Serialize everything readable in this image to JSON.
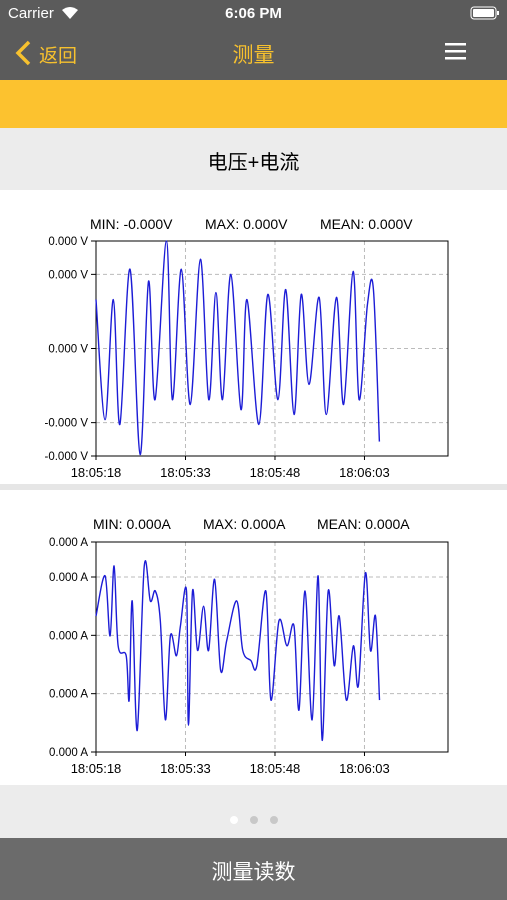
{
  "status_bar": {
    "carrier": "Carrier",
    "time": "6:06 PM"
  },
  "nav": {
    "back": "返回",
    "title": "测量"
  },
  "section_title": "电压+电流",
  "bottom_button": "测量读数",
  "chart_data": [
    {
      "type": "line",
      "stats": [
        "MIN: -0.000V",
        "MAX: 0.000V",
        "MEAN: 0.000V"
      ],
      "color": "#1c1cd6",
      "grid": true,
      "xlim": [
        65118,
        65177
      ],
      "xticks": [
        {
          "value": 65118,
          "label": "18:05:18"
        },
        {
          "value": 65133,
          "label": "18:05:33"
        },
        {
          "value": 65148,
          "label": "18:05:48"
        },
        {
          "value": 65163,
          "label": "18:06:03"
        }
      ],
      "ylim": [
        -0.00029,
        0.00029
      ],
      "yticks": [
        {
          "value": 0.00029,
          "label": "0.000 V"
        },
        {
          "value": 0.0002,
          "label": "0.000 V"
        },
        {
          "value": 0,
          "label": "0.000 V"
        },
        {
          "value": -0.0002,
          "label": "-0.000 V"
        },
        {
          "value": -0.00029,
          "label": "-0.000 V"
        }
      ],
      "x": [
        65118,
        65119.52,
        65120.9,
        65122,
        65123.7,
        65125.4,
        65126.8,
        65127.9,
        65129.8,
        65130.8,
        65132.3,
        65133.8,
        65135.5,
        65136.9,
        65138.1,
        65139.2,
        65140.6,
        65142.3,
        65143.3,
        65145.3,
        65146.8,
        65148.5,
        65149.8,
        65151.2,
        65152.4,
        65153.7,
        65155.4,
        65156.6,
        65158.3,
        65159.5,
        65161.1,
        65162.1,
        65163.5,
        65164.5,
        65165.5
      ],
      "values": [
        0.000132,
        -0.000192,
        0.000132,
        -0.000205,
        0.000214,
        -0.000286,
        0.000181,
        -0.000138,
        0.00029,
        -0.000138,
        0.000214,
        -0.000151,
        0.000241,
        -0.000138,
        0.000151,
        -0.000138,
        0.0002,
        -0.000165,
        0.000132,
        -0.000205,
        0.000146,
        -0.000138,
        0.000159,
        -0.000178,
        0.000146,
        -9.7e-05,
        0.000138,
        -0.000178,
        0.000138,
        -0.000151,
        0.000208,
        -0.000138,
        0.000119,
        0.000159,
        -0.000251
      ]
    },
    {
      "type": "line",
      "stats": [
        "MIN: 0.000A",
        "MAX: 0.000A",
        "MEAN: 0.000A"
      ],
      "color": "#1c1cd6",
      "grid": true,
      "xlim": [
        65118,
        65177
      ],
      "xticks": [
        {
          "value": 65118,
          "label": "18:05:18"
        },
        {
          "value": 65133,
          "label": "18:05:33"
        },
        {
          "value": 65148,
          "label": "18:05:48"
        },
        {
          "value": 65163,
          "label": "18:06:03"
        }
      ],
      "ylim": [
        0.0001,
        0.00046
      ],
      "yticks": [
        {
          "value": 0.00046,
          "label": "0.000 A"
        },
        {
          "value": 0.0004,
          "label": "0.000 A"
        },
        {
          "value": 0.0003,
          "label": "0.000 A"
        },
        {
          "value": 0.0002,
          "label": "0.000 A"
        },
        {
          "value": 0.0001,
          "label": "0.000 A"
        }
      ],
      "x": [
        65118,
        65119.52,
        65120.36,
        65121.03,
        65121.71,
        65123.06,
        65123.56,
        65124.07,
        65124.91,
        65126.09,
        65127.1,
        65127.94,
        65128.78,
        65129.63,
        65130.47,
        65131.48,
        65132.15,
        65133.17,
        65133.5,
        65134.18,
        65135.02,
        65136.03,
        65136.87,
        65137.88,
        65138.89,
        65139.91,
        65141.59,
        65142.6,
        65143.95,
        65144.96,
        65146.47,
        65147.32,
        65148.67,
        65150.01,
        65151.19,
        65152.03,
        65153.04,
        65154.22,
        65155.23,
        65155.91,
        65156.92,
        65157.93,
        65158.77,
        65159.96,
        65161.14,
        65161.98,
        65163.16,
        65164,
        65164.85,
        65165.52
      ],
      "values": [
        0.000333,
        0.000402,
        0.000299,
        0.000419,
        0.000282,
        0.000265,
        0.000189,
        0.000359,
        0.000137,
        0.000419,
        0.000359,
        0.000376,
        0.000325,
        0.000155,
        0.000299,
        0.000265,
        0.000316,
        0.000376,
        0.000146,
        0.000376,
        0.000274,
        0.00035,
        0.000274,
        0.000396,
        0.00024,
        0.000291,
        0.000359,
        0.000274,
        0.000257,
        0.000248,
        0.000376,
        0.000189,
        0.000325,
        0.000282,
        0.000316,
        0.000172,
        0.000376,
        0.000155,
        0.000402,
        0.00012,
        0.000376,
        0.000248,
        0.000333,
        0.000189,
        0.000282,
        0.000214,
        0.000407,
        0.000274,
        0.000333,
        0.000189
      ]
    }
  ]
}
